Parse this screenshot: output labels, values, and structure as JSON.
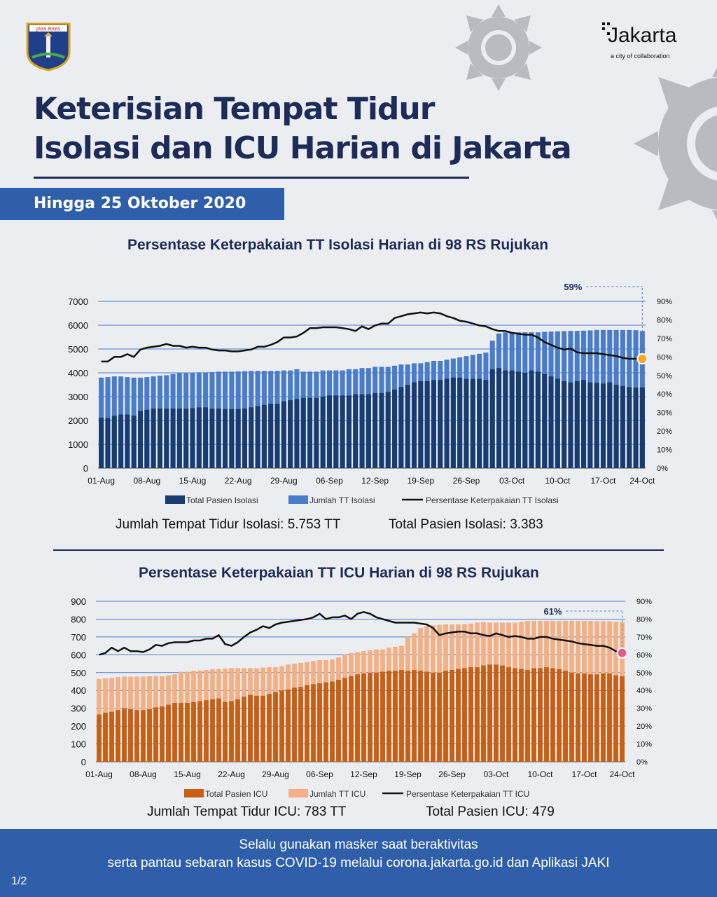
{
  "header": {
    "title_line1": "Keterisian Tempat Tidur",
    "title_line2": "Isolasi dan ICU Harian di Jakarta",
    "date_label": "Hingga 25 Oktober 2020",
    "logo_brand": "Jakarta",
    "logo_tagline": "a city of collaboration",
    "crest_text": "JAYA RAYA"
  },
  "colors": {
    "navy": "#1c2b57",
    "banner_blue": "#2f5fa8",
    "iso_patients": "#163c72",
    "iso_beds": "#4a7dc9",
    "icu_patients": "#c75f14",
    "icu_beds": "#f3b084",
    "line": "#111111"
  },
  "chart_data": [
    {
      "type": "bar",
      "title": "Persentase Keterpakaian TT Isolasi Harian di 98 RS Rujukan",
      "x_tick_labels": [
        "01-Aug",
        "08-Aug",
        "15-Aug",
        "22-Aug",
        "29-Aug",
        "06-Sep",
        "12-Sep",
        "19-Sep",
        "26-Sep",
        "03-Oct",
        "10-Oct",
        "17-Oct",
        "24-Oct"
      ],
      "y_ticks": [
        "0",
        "1000",
        "2000",
        "3000",
        "4000",
        "5000",
        "6000",
        "7000"
      ],
      "y2_ticks": [
        "0%",
        "10%",
        "20%",
        "30%",
        "40%",
        "50%",
        "60%",
        "70%",
        "80%",
        "90%"
      ],
      "ylim": [
        0,
        7000
      ],
      "y2lim": [
        0,
        90
      ],
      "legend": [
        "Total Pasien Isolasi",
        "Jumlah TT Isolasi",
        "Persentase Keterpakaian TT Isolasi"
      ],
      "legend_position": "bottom",
      "annotation": "59%",
      "series": [
        {
          "name": "Total Pasien Isolasi",
          "values": [
            2120,
            2100,
            2200,
            2250,
            2250,
            2200,
            2400,
            2450,
            2500,
            2500,
            2500,
            2500,
            2500,
            2500,
            2520,
            2550,
            2550,
            2500,
            2500,
            2480,
            2480,
            2480,
            2500,
            2550,
            2600,
            2650,
            2700,
            2700,
            2800,
            2850,
            2900,
            2950,
            2950,
            2950,
            3000,
            3050,
            3050,
            3050,
            3050,
            3100,
            3100,
            3100,
            3150,
            3150,
            3200,
            3300,
            3400,
            3500,
            3600,
            3650,
            3650,
            3700,
            3700,
            3750,
            3800,
            3800,
            3750,
            3750,
            3750,
            3700,
            4150,
            4200,
            4100,
            4100,
            4050,
            4000,
            4100,
            4050,
            3950,
            3850,
            3750,
            3650,
            3600,
            3650,
            3700,
            3600,
            3580,
            3550,
            3600,
            3500,
            3450,
            3400,
            3380,
            3383
          ]
        },
        {
          "name": "Jumlah TT Isolasi",
          "values": [
            3800,
            3820,
            3850,
            3850,
            3820,
            3800,
            3800,
            3820,
            3850,
            3880,
            3900,
            3950,
            4000,
            4000,
            4000,
            4020,
            4020,
            4030,
            4050,
            4050,
            4050,
            4060,
            4070,
            4080,
            4080,
            4080,
            4080,
            4080,
            4100,
            4100,
            4150,
            4050,
            4050,
            4050,
            4100,
            4100,
            4100,
            4100,
            4150,
            4150,
            4200,
            4200,
            4250,
            4250,
            4250,
            4300,
            4350,
            4350,
            4400,
            4400,
            4450,
            4500,
            4500,
            4550,
            4600,
            4650,
            4700,
            4750,
            4800,
            4850,
            5350,
            5650,
            5700,
            5700,
            5700,
            5700,
            5700,
            5700,
            5720,
            5730,
            5740,
            5750,
            5760,
            5760,
            5770,
            5780,
            5800,
            5800,
            5800,
            5800,
            5800,
            5800,
            5790,
            5753
          ]
        },
        {
          "name": "Persentase Keterpakaian TT Isolasi",
          "values": [
            57.5,
            57.5,
            60,
            60,
            61.5,
            60,
            64,
            65,
            65.5,
            66,
            67,
            66,
            66,
            65,
            65.5,
            65,
            65,
            64,
            63.5,
            63.5,
            63,
            63,
            63.5,
            64,
            65.5,
            65.5,
            66.5,
            68,
            70.5,
            70.5,
            71,
            73,
            75.5,
            75.5,
            76,
            76,
            76,
            75.5,
            75,
            74,
            76.5,
            75,
            77,
            78,
            78,
            81,
            82,
            83,
            83.5,
            84,
            83.5,
            84,
            83.5,
            82,
            81,
            79.5,
            79,
            78,
            77,
            76.5,
            75,
            74,
            74,
            73,
            72.5,
            72,
            72,
            70.5,
            68,
            66.5,
            65,
            64,
            64.5,
            62.5,
            62,
            62,
            62,
            61.5,
            61,
            60.5,
            59.5,
            59,
            59,
            59
          ]
        }
      ]
    },
    {
      "type": "bar",
      "title": "Persentase Keterpakaian TT ICU Harian di 98 RS Rujukan",
      "x_tick_labels": [
        "01-Aug",
        "08-Aug",
        "15-Aug",
        "22-Aug",
        "29-Aug",
        "06-Sep",
        "12-Sep",
        "19-Sep",
        "26-Sep",
        "03-Oct",
        "10-Oct",
        "17-Oct",
        "24-Oct"
      ],
      "y_ticks": [
        "0",
        "100",
        "200",
        "300",
        "400",
        "500",
        "600",
        "700",
        "800",
        "900"
      ],
      "y2_ticks": [
        "0%",
        "10%",
        "20%",
        "30%",
        "40%",
        "50%",
        "60%",
        "70%",
        "80%",
        "90%"
      ],
      "ylim": [
        0,
        900
      ],
      "y2lim": [
        0,
        90
      ],
      "legend": [
        "Total Pasien ICU",
        "Jumlah TT ICU",
        "Persentase Keterpakaian TT ICU"
      ],
      "legend_position": "bottom",
      "annotation": "61%",
      "series": [
        {
          "name": "Total Pasien ICU",
          "values": [
            265,
            275,
            280,
            290,
            300,
            295,
            290,
            290,
            295,
            305,
            310,
            320,
            330,
            330,
            330,
            335,
            340,
            345,
            350,
            355,
            335,
            340,
            350,
            365,
            375,
            370,
            370,
            380,
            390,
            400,
            405,
            415,
            420,
            430,
            435,
            440,
            445,
            450,
            460,
            470,
            480,
            490,
            495,
            500,
            500,
            505,
            510,
            510,
            515,
            510,
            515,
            510,
            505,
            500,
            500,
            510,
            515,
            520,
            525,
            530,
            530,
            540,
            545,
            545,
            540,
            530,
            525,
            520,
            515,
            525,
            525,
            530,
            525,
            520,
            510,
            500,
            495,
            495,
            490,
            490,
            495,
            495,
            485,
            479
          ]
        },
        {
          "name": "Jumlah TT ICU",
          "values": [
            465,
            468,
            470,
            475,
            478,
            478,
            478,
            478,
            480,
            480,
            480,
            485,
            490,
            505,
            505,
            510,
            512,
            515,
            518,
            520,
            522,
            525,
            525,
            525,
            525,
            525,
            528,
            530,
            530,
            535,
            545,
            550,
            555,
            560,
            565,
            570,
            570,
            575,
            585,
            600,
            610,
            615,
            620,
            625,
            630,
            630,
            640,
            645,
            650,
            700,
            720,
            750,
            760,
            765,
            768,
            770,
            770,
            770,
            772,
            775,
            780,
            782,
            780,
            780,
            780,
            780,
            780,
            785,
            790,
            790,
            790,
            790,
            790,
            790,
            790,
            790,
            790,
            790,
            790,
            788,
            788,
            788,
            785,
            783
          ]
        },
        {
          "name": "Persentase Keterpakaian TT ICU",
          "values": [
            60,
            61,
            64,
            62,
            64,
            62,
            62,
            61.5,
            63,
            65.5,
            65,
            66.5,
            67,
            67,
            67,
            68,
            68,
            69,
            69,
            71,
            66,
            65,
            67,
            70,
            72.5,
            74,
            76,
            75,
            77,
            78,
            78.5,
            79,
            79.5,
            80,
            81,
            83,
            80,
            81,
            81,
            82,
            80,
            83,
            84,
            83,
            81,
            80,
            79,
            78,
            78,
            78,
            78,
            77.5,
            77,
            75,
            71,
            72,
            72.5,
            73,
            73,
            72,
            72,
            71,
            70.5,
            72,
            71,
            70,
            70.5,
            70,
            69,
            69,
            70,
            70,
            69,
            68.5,
            68,
            67.5,
            66.5,
            66,
            65.5,
            65,
            65,
            64,
            62,
            61
          ]
        }
      ]
    }
  ],
  "summary_isolasi": {
    "beds": "Jumlah Tempat Tidur Isolasi: 5.753 TT",
    "patients": "Total Pasien Isolasi: 3.383"
  },
  "summary_icu": {
    "beds": "Jumlah Tempat Tidur ICU: 783 TT",
    "patients": "Total Pasien ICU: 479"
  },
  "footer": {
    "line1": "Selalu gunakan masker saat beraktivitas",
    "line2": "serta pantau sebaran kasus COVID-19 melalui corona.jakarta.go.id dan Aplikasi JAKI",
    "page": "1/2"
  }
}
